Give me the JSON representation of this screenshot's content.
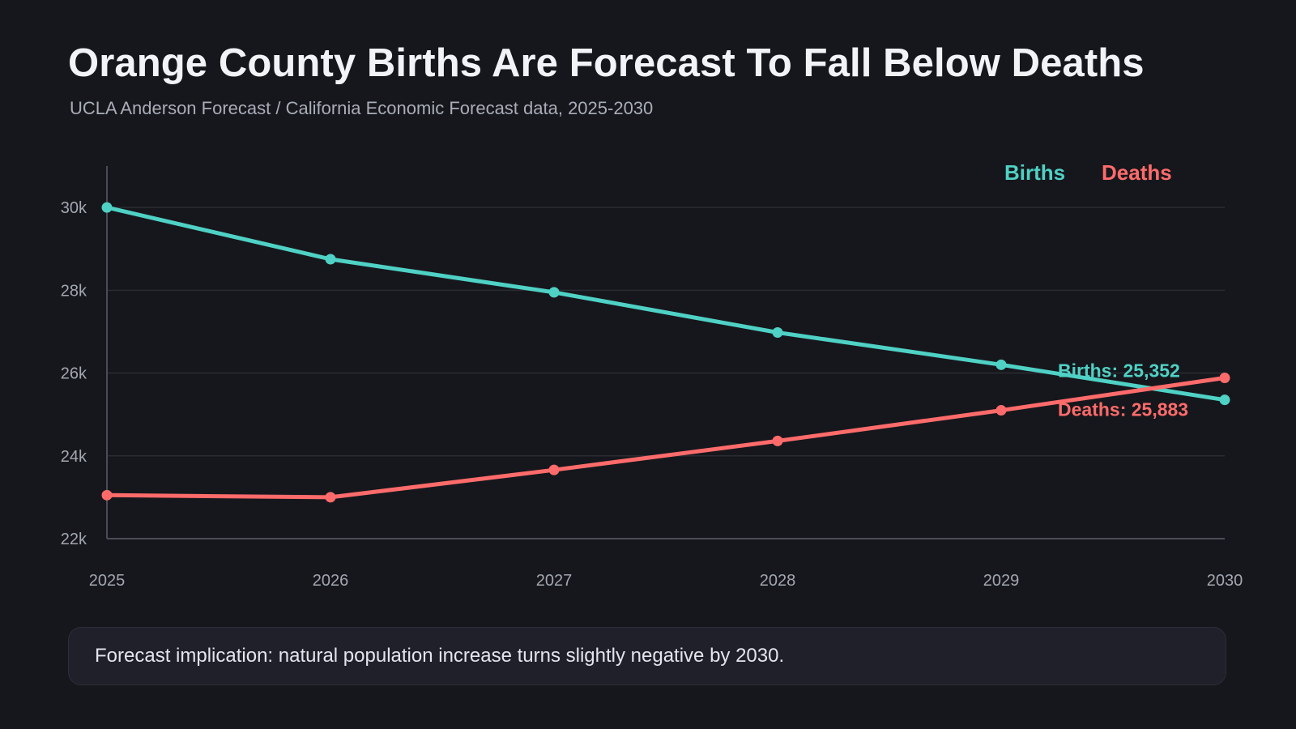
{
  "title": "Orange County Births Are Forecast To Fall Below Deaths",
  "subtitle": "UCLA Anderson Forecast / California Economic Forecast data, 2025-2030",
  "note": "Forecast implication: natural population increase turns slightly negative by 2030.",
  "colors": {
    "background": "#16171c",
    "births": "#4fd1c5",
    "deaths": "#ff6b6b",
    "grid": "#2a2c33",
    "axis": "#4a4d57"
  },
  "chart_data": {
    "type": "line",
    "x": [
      "2025",
      "2026",
      "2027",
      "2028",
      "2029",
      "2030"
    ],
    "ylim": [
      22000,
      31000
    ],
    "yticks": [
      {
        "value": 22000,
        "label": "22k"
      },
      {
        "value": 24000,
        "label": "24k"
      },
      {
        "value": 26000,
        "label": "26k"
      },
      {
        "value": 28000,
        "label": "28k"
      },
      {
        "value": 30000,
        "label": "30k"
      }
    ],
    "grid": true,
    "legend": "top-right",
    "series": [
      {
        "name": "Births",
        "color": "#4fd1c5",
        "values": [
          30000,
          28750,
          27950,
          26980,
          26200,
          25352
        ],
        "end_label": "Births: 25,352"
      },
      {
        "name": "Deaths",
        "color": "#ff6b6b",
        "values": [
          23050,
          23000,
          23660,
          24360,
          25100,
          25883
        ],
        "end_label": "Deaths: 25,883"
      }
    ]
  }
}
